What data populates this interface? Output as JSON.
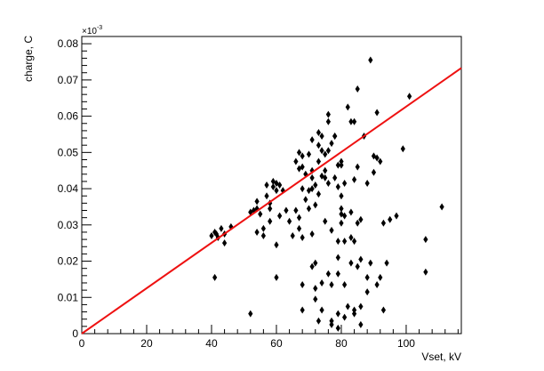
{
  "chart_data": {
    "type": "scatter",
    "title": "",
    "xlabel": "Vset, kV",
    "ylabel": "charge, C",
    "y_multiplier_label": "×10",
    "y_multiplier_exponent": "-3",
    "xlim": [
      0,
      117
    ],
    "ylim": [
      0,
      0.082
    ],
    "x_ticks": [
      0,
      20,
      40,
      60,
      80,
      100
    ],
    "x_tick_labels": [
      "0",
      "20",
      "40",
      "60",
      "80",
      "100"
    ],
    "y_ticks": [
      0,
      0.01,
      0.02,
      0.03,
      0.04,
      0.05,
      0.06,
      0.07,
      0.08
    ],
    "y_tick_labels": [
      "0",
      "0.01",
      "0.02",
      "0.03",
      "0.04",
      "0.05",
      "0.06",
      "0.07",
      "0.08"
    ],
    "grid": false,
    "legend": "none",
    "colors": {
      "points": "#000000",
      "fit": "#ee1111"
    },
    "fit_line": {
      "x": [
        0,
        117
      ],
      "y": [
        0,
        0.0733
      ]
    },
    "series": [
      {
        "marker": "diamond",
        "points": [
          [
            40,
            0.027
          ],
          [
            41,
            0.028
          ],
          [
            41.5,
            0.0275
          ],
          [
            42,
            0.0265
          ],
          [
            43,
            0.029
          ],
          [
            44,
            0.025
          ],
          [
            44,
            0.0275
          ],
          [
            46,
            0.0295
          ],
          [
            41,
            0.0155
          ],
          [
            52,
            0.0335
          ],
          [
            52,
            0.0055
          ],
          [
            53,
            0.034
          ],
          [
            54,
            0.0365
          ],
          [
            54,
            0.0345
          ],
          [
            54,
            0.028
          ],
          [
            55,
            0.033
          ],
          [
            56,
            0.029
          ],
          [
            56,
            0.027
          ],
          [
            57,
            0.041
          ],
          [
            57,
            0.038
          ],
          [
            58,
            0.036
          ],
          [
            58,
            0.0345
          ],
          [
            58,
            0.031
          ],
          [
            59,
            0.042
          ],
          [
            59,
            0.0405
          ],
          [
            60,
            0.0395
          ],
          [
            60,
            0.0415
          ],
          [
            61,
            0.041
          ],
          [
            60,
            0.0155
          ],
          [
            60,
            0.0245
          ],
          [
            61,
            0.0325
          ],
          [
            62,
            0.0395
          ],
          [
            63,
            0.034
          ],
          [
            64,
            0.031
          ],
          [
            65,
            0.027
          ],
          [
            66,
            0.0475
          ],
          [
            67,
            0.05
          ],
          [
            67,
            0.0455
          ],
          [
            66,
            0.034
          ],
          [
            67,
            0.032
          ],
          [
            67,
            0.029
          ],
          [
            68,
            0.049
          ],
          [
            68,
            0.046
          ],
          [
            68,
            0.04
          ],
          [
            69,
            0.044
          ],
          [
            69,
            0.037
          ],
          [
            68,
            0.0265
          ],
          [
            68,
            0.0065
          ],
          [
            68,
            0.0135
          ],
          [
            70,
            0.0495
          ],
          [
            70,
            0.0395
          ],
          [
            70,
            0.0345
          ],
          [
            71,
            0.0535
          ],
          [
            71,
            0.045
          ],
          [
            71,
            0.043
          ],
          [
            71,
            0.04
          ],
          [
            72,
            0.041
          ],
          [
            72,
            0.0355
          ],
          [
            71,
            0.0275
          ],
          [
            72,
            0.0195
          ],
          [
            71,
            0.0185
          ],
          [
            72,
            0.0125
          ],
          [
            72,
            0.0095
          ],
          [
            73,
            0.0555
          ],
          [
            73,
            0.052
          ],
          [
            73,
            0.0475
          ],
          [
            73,
            0.0385
          ],
          [
            74,
            0.0545
          ],
          [
            74,
            0.0505
          ],
          [
            74,
            0.0435
          ],
          [
            74,
            0.0065
          ],
          [
            73,
            0.0035
          ],
          [
            74,
            0.014
          ],
          [
            75,
            0.0495
          ],
          [
            75,
            0.045
          ],
          [
            75,
            0.043
          ],
          [
            75,
            0.031
          ],
          [
            76,
            0.0605
          ],
          [
            76,
            0.0585
          ],
          [
            76,
            0.0505
          ],
          [
            76,
            0.0415
          ],
          [
            76,
            0.0165
          ],
          [
            77,
            0.0525
          ],
          [
            77,
            0.0285
          ],
          [
            77,
            0.0035
          ],
          [
            77,
            0.0025
          ],
          [
            77,
            0.0135
          ],
          [
            78,
            0.0545
          ],
          [
            78,
            0.0545
          ],
          [
            78,
            0.043
          ],
          [
            79,
            0.0465
          ],
          [
            79,
            0.0405
          ],
          [
            79,
            0.0255
          ],
          [
            79,
            0.021
          ],
          [
            79,
            0.0165
          ],
          [
            79,
            0.0055
          ],
          [
            79,
            0.0015
          ],
          [
            80,
            0.0475
          ],
          [
            80,
            0.0465
          ],
          [
            80,
            0.038
          ],
          [
            80,
            0.0345
          ],
          [
            80,
            0.033
          ],
          [
            80,
            0.0305
          ],
          [
            81,
            0.0415
          ],
          [
            81,
            0.0325
          ],
          [
            81,
            0.0255
          ],
          [
            81,
            0.0135
          ],
          [
            81,
            0.0045
          ],
          [
            82,
            0.0625
          ],
          [
            82,
            0.0075
          ],
          [
            83,
            0.0585
          ],
          [
            83,
            0.0335
          ],
          [
            83,
            0.0265
          ],
          [
            83,
            0.0195
          ],
          [
            84,
            0.0585
          ],
          [
            84,
            0.0425
          ],
          [
            84,
            0.0255
          ],
          [
            84,
            0.0065
          ],
          [
            84,
            0.0055
          ],
          [
            85,
            0.0675
          ],
          [
            85,
            0.046
          ],
          [
            85,
            0.0305
          ],
          [
            85,
            0.0185
          ],
          [
            86,
            0.0315
          ],
          [
            86,
            0.0205
          ],
          [
            86,
            0.0025
          ],
          [
            86,
            0.0075
          ],
          [
            87,
            0.0545
          ],
          [
            88,
            0.0415
          ],
          [
            88,
            0.0155
          ],
          [
            88,
            0.0115
          ],
          [
            89,
            0.0755
          ],
          [
            89,
            0.0195
          ],
          [
            90,
            0.0445
          ],
          [
            90,
            0.049
          ],
          [
            91,
            0.061
          ],
          [
            91,
            0.0485
          ],
          [
            91,
            0.0135
          ],
          [
            92,
            0.0475
          ],
          [
            92,
            0.0155
          ],
          [
            93,
            0.0065
          ],
          [
            93,
            0.0305
          ],
          [
            94,
            0.0195
          ],
          [
            95,
            0.0315
          ],
          [
            97,
            0.0325
          ],
          [
            99,
            0.051
          ],
          [
            101,
            0.0655
          ],
          [
            106,
            0.026
          ],
          [
            106,
            0.017
          ],
          [
            111,
            0.035
          ]
        ]
      }
    ]
  }
}
